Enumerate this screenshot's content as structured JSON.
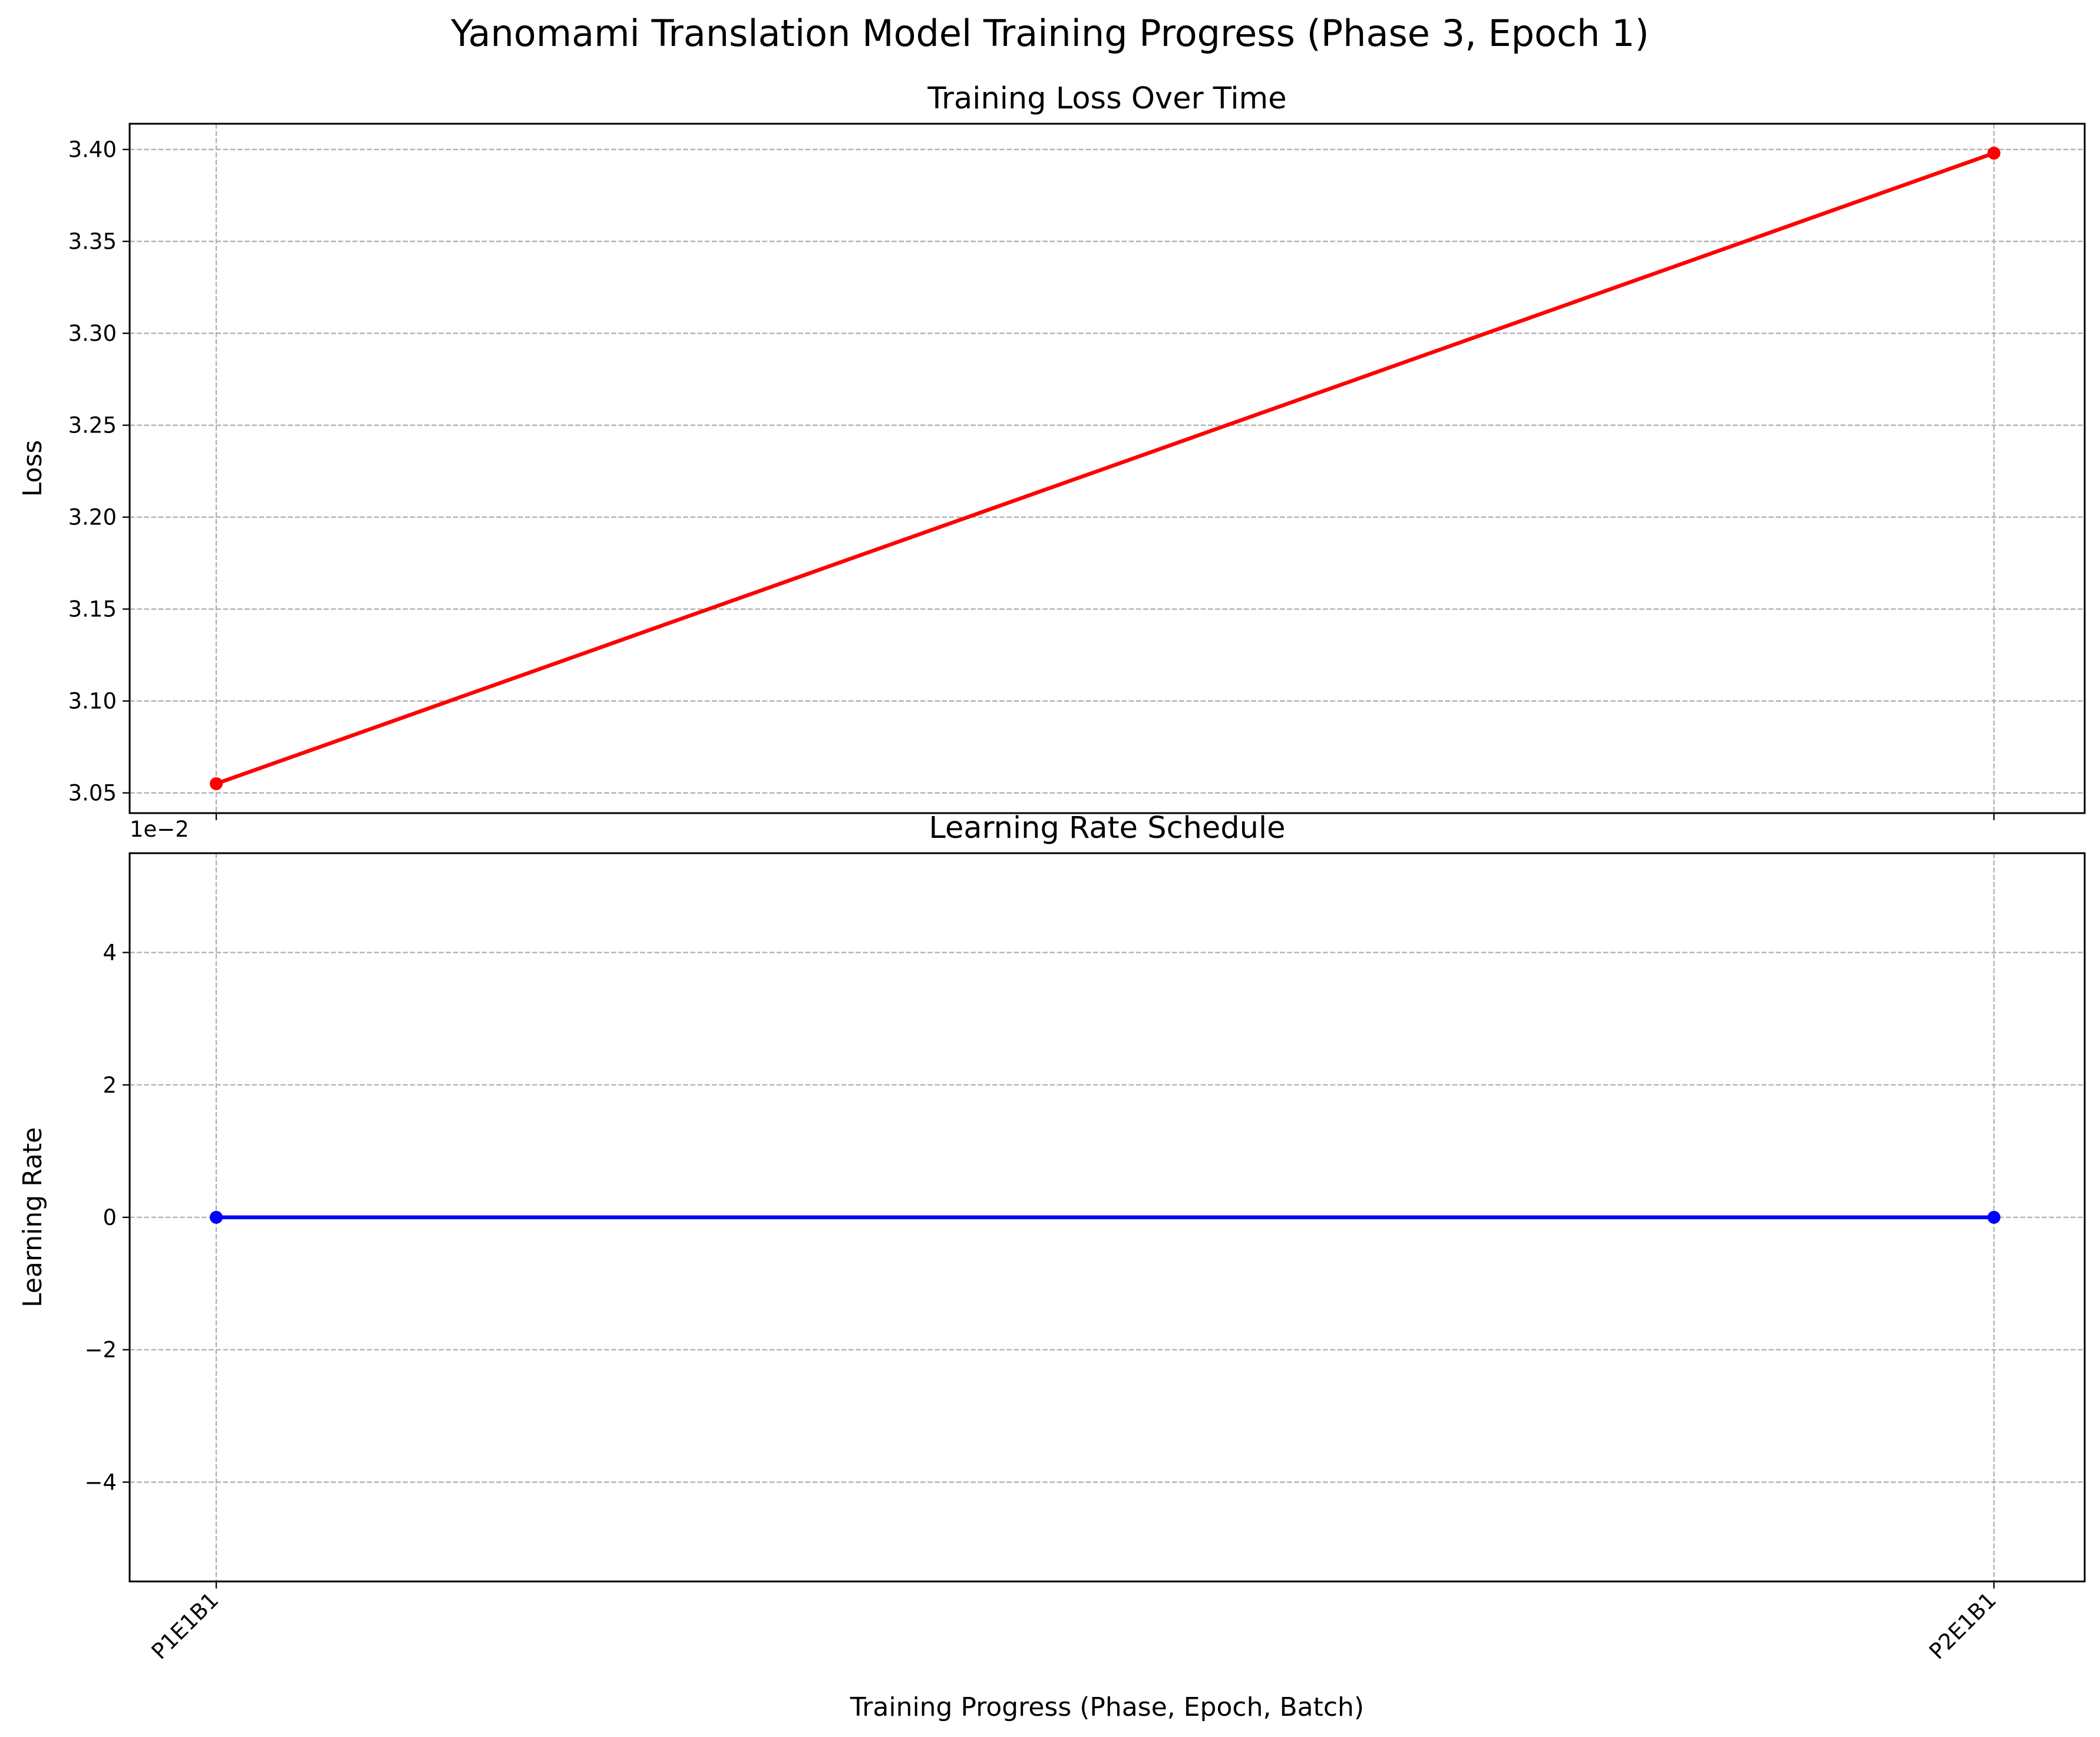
{
  "figure": {
    "title": "Yanomami Translation Model Training Progress (Phase 3, Epoch 1)"
  },
  "chart_data": [
    {
      "type": "line",
      "title": "Training Loss Over Time",
      "xlabel": "",
      "ylabel": "Loss",
      "categories": [
        "P1E1B1",
        "P2E1B1"
      ],
      "series": [
        {
          "values": [
            3.055,
            3.398
          ],
          "color": "#ff0000",
          "marker": "circle"
        }
      ],
      "ylim": [
        3.039,
        3.414
      ],
      "yticks": [
        3.05,
        3.1,
        3.15,
        3.2,
        3.25,
        3.3,
        3.35,
        3.4
      ],
      "ytick_labels": [
        "3.05",
        "3.10",
        "3.15",
        "3.20",
        "3.25",
        "3.30",
        "3.35",
        "3.40"
      ],
      "show_xtick_labels": false,
      "grid": true
    },
    {
      "type": "line",
      "title": "Learning Rate Schedule",
      "xlabel": "Training Progress (Phase, Epoch, Batch)",
      "ylabel": "Learning Rate",
      "categories": [
        "P1E1B1",
        "P2E1B1"
      ],
      "series": [
        {
          "values": [
            0,
            0
          ],
          "color": "#0000ff",
          "marker": "circle"
        }
      ],
      "ylim": [
        -0.055,
        0.055
      ],
      "yticks": [
        -0.04,
        -0.02,
        0,
        0.02,
        0.04
      ],
      "ytick_labels": [
        "−4",
        "−2",
        "0",
        "2",
        "4"
      ],
      "offset_text": "1e−2",
      "show_xtick_labels": true,
      "xtick_rotation": 45,
      "grid": true
    }
  ]
}
